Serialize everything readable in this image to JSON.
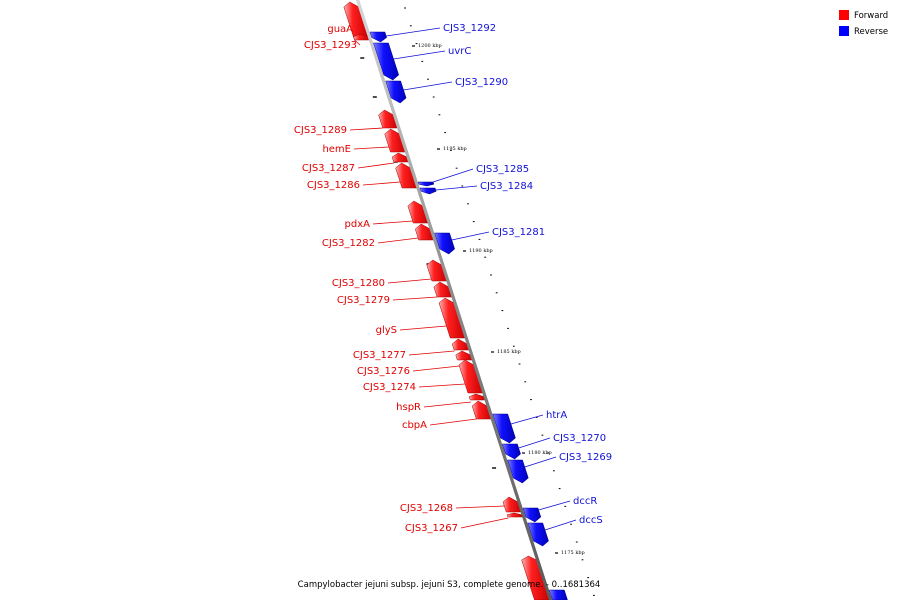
{
  "caption": "Campylobacter jejuni subsp. jejuni S3, complete genome. - 0..1681364",
  "legend": [
    {
      "label": "Forward",
      "color": "#ff0000"
    },
    {
      "label": "Reverse",
      "color": "#0000ff"
    }
  ],
  "colors": {
    "forward": "#ff0000",
    "reverse": "#0000ff",
    "backbone": "#9a9a9a"
  },
  "scale_labels": [
    "1200 kbp",
    "1195 kbp",
    "1190 kbp",
    "1185 kbp",
    "1180 kbp",
    "1175 kbp"
  ],
  "forward_genes": [
    "guaA",
    "CJS3_1293",
    "CJS3_1289",
    "hemE",
    "CJS3_1287",
    "CJS3_1286",
    "pdxA",
    "CJS3_1282",
    "CJS3_1280",
    "CJS3_1279",
    "glyS",
    "CJS3_1277",
    "CJS3_1276",
    "CJS3_1274",
    "hspR",
    "cbpA",
    "CJS3_1268",
    "CJS3_1267"
  ],
  "reverse_genes": [
    "CJS3_1292",
    "uvrC",
    "CJS3_1290",
    "CJS3_1285",
    "CJS3_1284",
    "CJS3_1281",
    "htrA",
    "CJS3_1270",
    "CJS3_1269",
    "dccR",
    "dccS"
  ]
}
